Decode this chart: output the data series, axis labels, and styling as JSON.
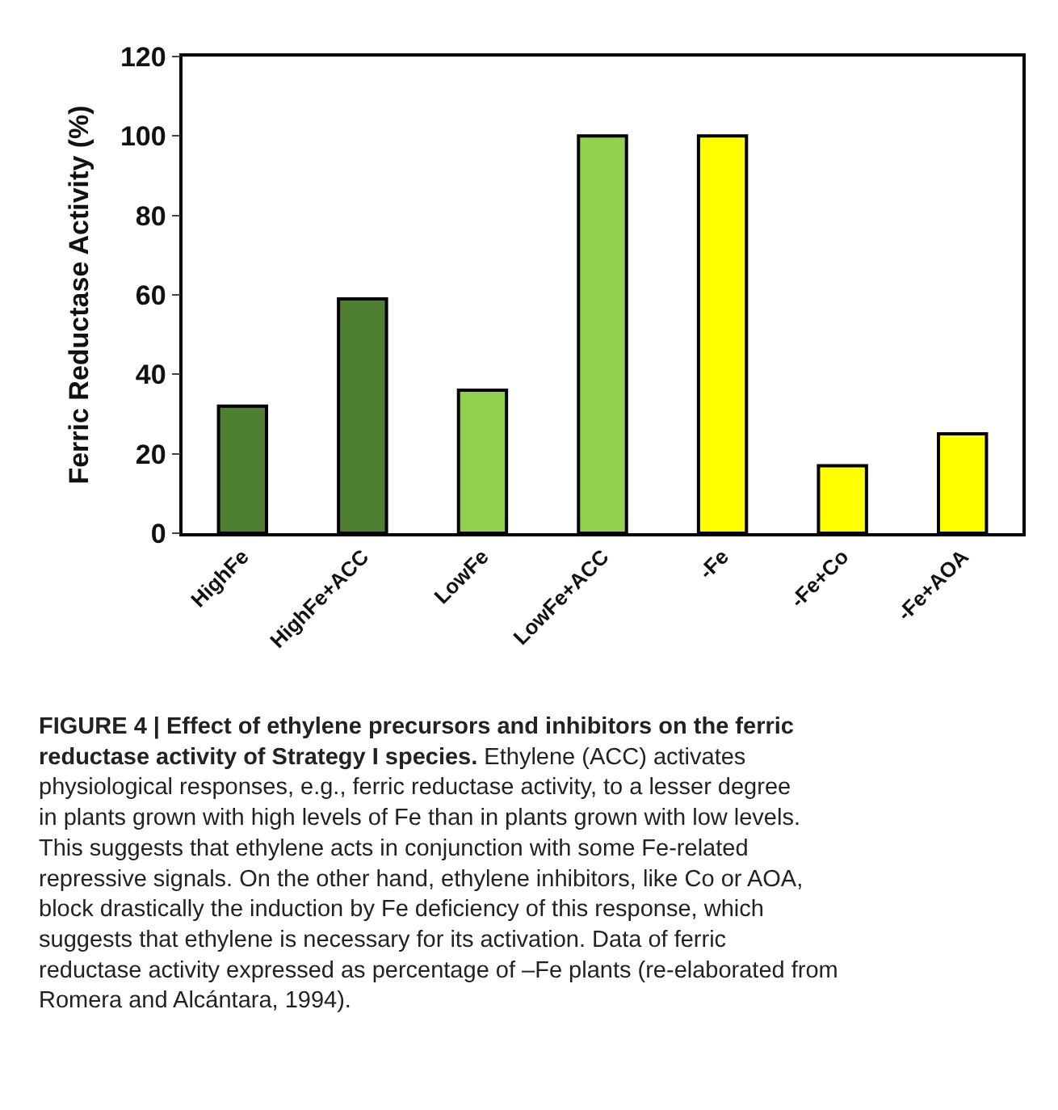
{
  "chart_data": {
    "type": "bar",
    "title": "FIGURE 4 | Effect of ethylene precursors and inhibitors on the ferric reductase activity of Strategy I species.",
    "ylabel": "Ferric Reductase Activity (%)",
    "categories": [
      "HighFe",
      "HighFe+ACC",
      "LowFe",
      "LowFe+ACC",
      "-Fe",
      "-Fe+Co",
      "-Fe+AOA"
    ],
    "values": [
      32,
      59,
      36,
      100,
      100,
      17,
      25
    ],
    "colors": [
      "#4f7f30",
      "#4f7f30",
      "#92d050",
      "#92d050",
      "#ffff00",
      "#ffff00",
      "#ffff00"
    ],
    "ylim": [
      0,
      120
    ],
    "yticks": [
      0,
      20,
      40,
      60,
      80,
      100,
      120
    ],
    "annotations": [
      "Ethylene (ACC) activates physiological responses, e.g., ferric reductase activity, to a lesser degree in plants grown with high levels of Fe than in plants grown with low levels. This suggests that ethylene acts in conjunction with some Fe-related repressive signals. On the other hand, ethylene inhibitors, like Co or AOA, block drastically the induction by Fe deficiency of this response, which suggests that ethylene is necessary for its activation. Data of ferric reductase activity expressed as percentage of –Fe plants (re-elaborated from Romera and Alcántara, 1994)."
    ]
  }
}
